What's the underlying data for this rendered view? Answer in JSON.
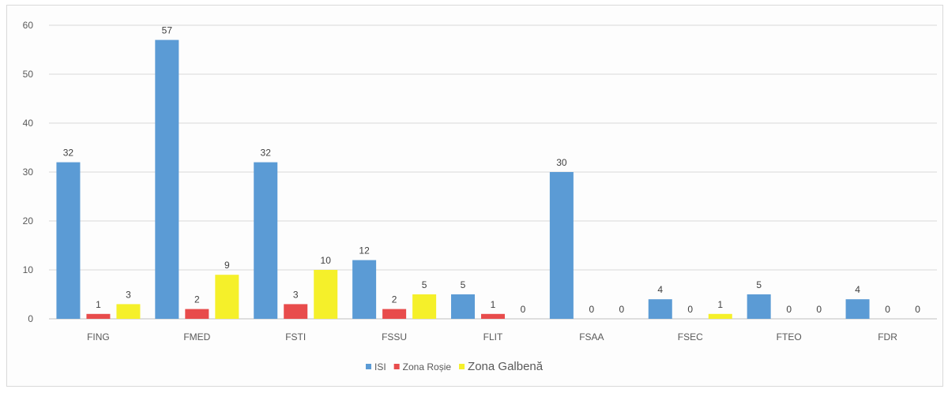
{
  "chart_data": {
    "type": "bar",
    "categories": [
      "FING",
      "FMED",
      "FSTI",
      "FSSU",
      "FLIT",
      "FSAA",
      "FSEC",
      "FTEO",
      "FDR"
    ],
    "series": [
      {
        "name": "ISI",
        "color": "#5b9bd5",
        "values": [
          32,
          57,
          32,
          12,
          5,
          30,
          4,
          5,
          4
        ]
      },
      {
        "name": "Zona Roșie",
        "color": "#e84c4c",
        "values": [
          1,
          2,
          3,
          2,
          1,
          0,
          0,
          0,
          0
        ]
      },
      {
        "name": "Zona Galbenă",
        "color": "#f5f02a",
        "values": [
          3,
          9,
          10,
          5,
          0,
          0,
          1,
          0,
          0
        ]
      }
    ],
    "ylim": [
      0,
      60
    ],
    "yticks": [
      0,
      10,
      20,
      30,
      40,
      50,
      60
    ],
    "grid": true,
    "legend_position": "bottom",
    "title": "",
    "xlabel": "",
    "ylabel": ""
  }
}
